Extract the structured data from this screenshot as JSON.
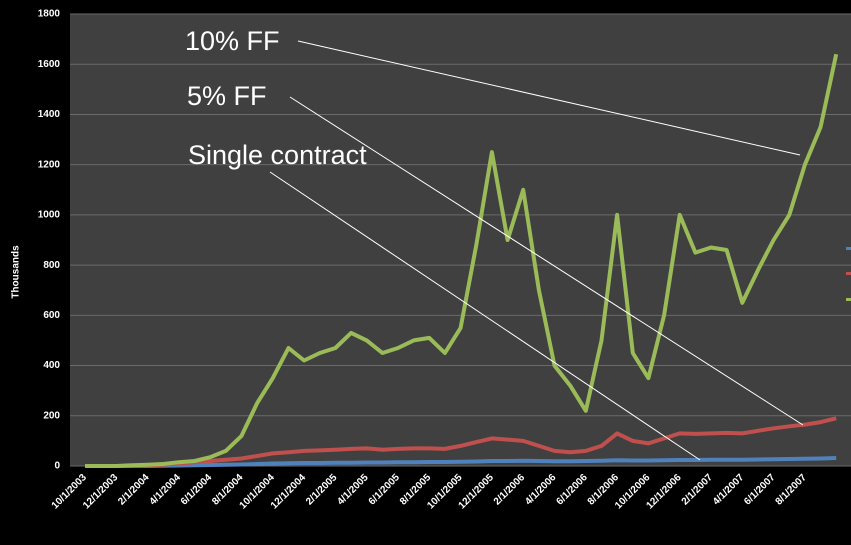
{
  "chart_data": {
    "type": "line",
    "y_label": "Thousands",
    "categories": [
      "10/1/2003",
      null,
      "12/1/2003",
      null,
      "2/1/2004",
      null,
      "4/1/2004",
      null,
      "6/1/2004",
      null,
      "8/1/2004",
      null,
      "10/1/2004",
      null,
      "12/1/2004",
      null,
      "2/1/2005",
      null,
      "4/1/2005",
      null,
      "6/1/2005",
      null,
      "8/1/2005",
      null,
      "10/1/2005",
      null,
      "12/1/2005",
      null,
      "2/1/2006",
      null,
      "4/1/2006",
      null,
      "6/1/2006",
      null,
      "8/1/2006",
      null,
      "10/1/2006",
      null,
      "12/1/2006",
      null,
      "2/1/2007",
      null,
      "4/1/2007",
      null,
      "6/1/2007",
      null,
      "8/1/2007",
      null,
      null
    ],
    "series": [
      {
        "name": "10% FF",
        "color": "#9bbb59",
        "values": [
          0,
          0,
          0,
          3,
          5,
          8,
          15,
          20,
          35,
          60,
          120,
          250,
          350,
          470,
          420,
          450,
          470,
          530,
          500,
          450,
          470,
          500,
          510,
          450,
          550,
          880,
          1250,
          900,
          1100,
          700,
          400,
          320,
          220,
          500,
          1000,
          450,
          350,
          600,
          1000,
          850,
          870,
          860,
          650,
          780,
          900,
          1000,
          1200,
          1350,
          1640
        ]
      },
      {
        "name": "5% FF",
        "color": "#c0504d",
        "values": [
          0,
          0,
          0,
          0,
          2,
          5,
          10,
          15,
          20,
          25,
          30,
          40,
          50,
          55,
          60,
          62,
          65,
          68,
          70,
          65,
          68,
          70,
          70,
          68,
          80,
          95,
          110,
          105,
          100,
          80,
          60,
          55,
          60,
          80,
          130,
          100,
          90,
          110,
          130,
          128,
          130,
          132,
          130,
          140,
          150,
          158,
          165,
          175,
          190
        ]
      },
      {
        "name": "Single contract",
        "color": "#4f81bd",
        "values": [
          0,
          0,
          0,
          0,
          0,
          1,
          2,
          3,
          4,
          5,
          6,
          8,
          10,
          11,
          12,
          12,
          13,
          13,
          14,
          14,
          15,
          15,
          16,
          16,
          17,
          18,
          20,
          20,
          21,
          20,
          19,
          19,
          20,
          21,
          23,
          22,
          22,
          23,
          24,
          24,
          25,
          25,
          25,
          26,
          27,
          28,
          29,
          30,
          32
        ]
      }
    ],
    "ylim": [
      0,
      1800
    ],
    "yticks": [
      0,
      200,
      400,
      600,
      800,
      1000,
      1200,
      1400,
      1600,
      1800
    ],
    "grid": true
  }
}
